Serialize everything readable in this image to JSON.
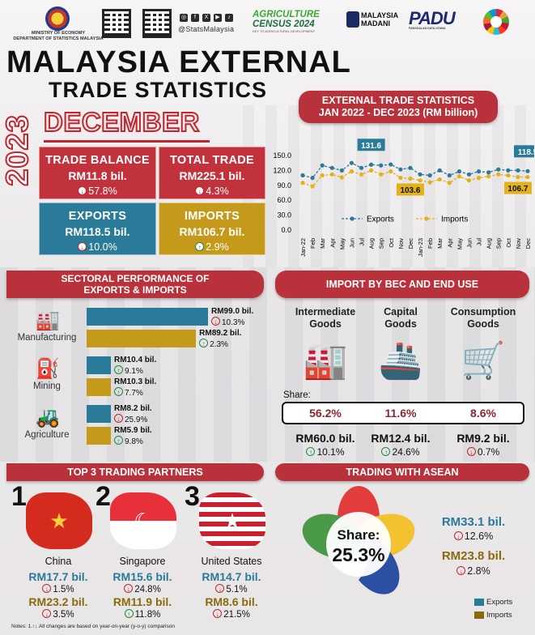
{
  "header": {
    "ministry_line1": "MINISTRY OF ECONOMY",
    "ministry_line2": "DEPARTMENT OF STATISTICS MALAYSIA",
    "social_handle": "@StatsMalaysia",
    "census_line1": "AGRICULTURE",
    "census_line2": "CENSUS 2024",
    "census_tagline": "KEY TO AGRICULTURAL DEVELOPMENT",
    "madani_line1": "MALAYSIA",
    "madani_line2": "MADANI",
    "padu": "PADU",
    "padu_tagline": "PANGKALAN DATA UTAMA",
    "social_icons": [
      "instagram-icon",
      "facebook-icon",
      "x-icon",
      "youtube-icon",
      "tiktok-icon"
    ]
  },
  "title": {
    "line1": "MALAYSIA EXTERNAL",
    "line2": "TRADE STATISTICS",
    "year": "2023",
    "month": "DECEMBER"
  },
  "cards": {
    "trade_balance": {
      "label": "TRADE BALANCE",
      "value": "RM11.8 bil.",
      "change": "57.8%",
      "direction": "down"
    },
    "total_trade": {
      "label": "TOTAL TRADE",
      "value": "RM225.1 bil.",
      "change": "4.3%",
      "direction": "down"
    },
    "exports": {
      "label": "EXPORTS",
      "value": "RM118.5 bil.",
      "change": "10.0%",
      "direction": "down"
    },
    "imports": {
      "label": "IMPORTS",
      "value": "RM106.7 bil.",
      "change": "2.9%",
      "direction": "up"
    }
  },
  "chart_data": {
    "type": "line",
    "title": "EXTERNAL TRADE STATISTICS",
    "subtitle": "JAN 2022 - DEC 2023 (RM billion)",
    "x": [
      "Jan-22",
      "Feb",
      "Mar",
      "Apr",
      "May",
      "Jun",
      "Jul",
      "Aug",
      "Sep",
      "Oct",
      "Nov",
      "Dec",
      "Jan-23",
      "Feb",
      "Mar",
      "Apr",
      "May",
      "Jun",
      "Jul",
      "Aug",
      "Sep",
      "Oct",
      "Nov",
      "Dec"
    ],
    "y_ticks": [
      "0.0",
      "30.0",
      "60.0",
      "90.0",
      "120.0",
      "150.0"
    ],
    "ylim": [
      0,
      150
    ],
    "series": [
      {
        "name": "Exports",
        "color": "#2a7a99",
        "values": [
          110,
          105,
          130,
          125,
          120,
          135,
          125,
          131.6,
          130,
          132,
          122,
          125,
          112,
          110,
          120,
          110,
          118,
          112,
          118,
          116,
          122,
          120,
          120,
          118.5
        ]
      },
      {
        "name": "Imports",
        "color": "#e3b21b",
        "values": [
          95,
          88,
          110,
          112,
          106,
          118,
          112,
          120,
          112,
          118,
          105,
          103.6,
          100,
          96,
          102,
          95,
          108,
          100,
          105,
          108,
          112,
          110,
          106.7,
          106.7
        ]
      }
    ],
    "annotations": [
      "131.6",
      "103.6",
      "118.5",
      "106.7"
    ],
    "legend": "bottom"
  },
  "sectoral": {
    "title_line1": "SECTORAL PERFORMANCE OF",
    "title_line2": "EXPORTS & IMPORTS",
    "max_value": 99.0,
    "rows": [
      {
        "name": "Manufacturing",
        "icon": "factory-icon",
        "export_value": 99.0,
        "export_label": "RM99.0 bil.",
        "export_change": "10.3%",
        "export_dir": "down",
        "import_value": 89.2,
        "import_label": "RM89.2 bil.",
        "import_change": "2.3%",
        "import_dir": "up"
      },
      {
        "name": "Mining",
        "icon": "oil-pump-icon",
        "export_value": 10.4,
        "export_label": "RM10.4 bil.",
        "export_change": "9.1%",
        "export_dir": "up",
        "import_value": 10.3,
        "import_label": "RM10.3 bil.",
        "import_change": "7.7%",
        "import_dir": "up"
      },
      {
        "name": "Agriculture",
        "icon": "tractor-icon",
        "export_value": 8.2,
        "export_label": "RM8.2 bil.",
        "export_change": "25.9%",
        "export_dir": "down",
        "import_value": 5.9,
        "import_label": "RM5.9 bil.",
        "import_change": "9.8%",
        "import_dir": "up"
      }
    ]
  },
  "bec": {
    "title": "IMPORT BY BEC AND END USE",
    "share_label": "Share:",
    "items": [
      {
        "name_line1": "Intermediate",
        "name_line2": "Goods",
        "icon": "refinery-icon",
        "share": "56.2%",
        "value": "RM60.0 bil.",
        "change": "10.1%",
        "dir": "up"
      },
      {
        "name_line1": "Capital",
        "name_line2": "Goods",
        "icon": "cargo-ship-icon",
        "share": "11.6%",
        "value": "RM12.4 bil.",
        "change": "24.6%",
        "dir": "up"
      },
      {
        "name_line1": "Consumption",
        "name_line2": "Goods",
        "icon": "shopping-cart-icon",
        "share": "8.6%",
        "value": "RM9.2 bil.",
        "change": "0.7%",
        "dir": "down"
      }
    ]
  },
  "partners": {
    "title": "TOP 3 TRADING PARTNERS",
    "items": [
      {
        "rank": "1",
        "country": "China",
        "export": "RM17.7 bil.",
        "export_change": "1.5%",
        "export_dir": "down",
        "import": "RM23.2 bil.",
        "import_change": "3.5%",
        "import_dir": "down"
      },
      {
        "rank": "2",
        "country": "Singapore",
        "export": "RM15.6 bil.",
        "export_change": "24.8%",
        "export_dir": "down",
        "import": "RM11.9 bil.",
        "import_change": "11.8%",
        "import_dir": "up"
      },
      {
        "rank": "3",
        "country": "United States",
        "export": "RM14.7 bil.",
        "export_change": "5.1%",
        "export_dir": "down",
        "import": "RM8.6 bil.",
        "import_change": "21.5%",
        "import_dir": "down"
      }
    ]
  },
  "asean": {
    "title": "TRADING WITH ASEAN",
    "share_label": "Share:",
    "share_value": "25.3%",
    "export": "RM33.1 bil.",
    "export_change": "12.6%",
    "export_dir": "down",
    "import": "RM23.8 bil.",
    "import_change": "2.8%",
    "import_dir": "down",
    "legend_exports": "Exports",
    "legend_imports": "Imports"
  },
  "notes": "Notes:  1.↑↓ All changes are based on year-on-year (y-o-y) comparison",
  "colors": {
    "exports": "#2a7a99",
    "imports": "#c59a1b",
    "accent_red": "#c2323d"
  }
}
